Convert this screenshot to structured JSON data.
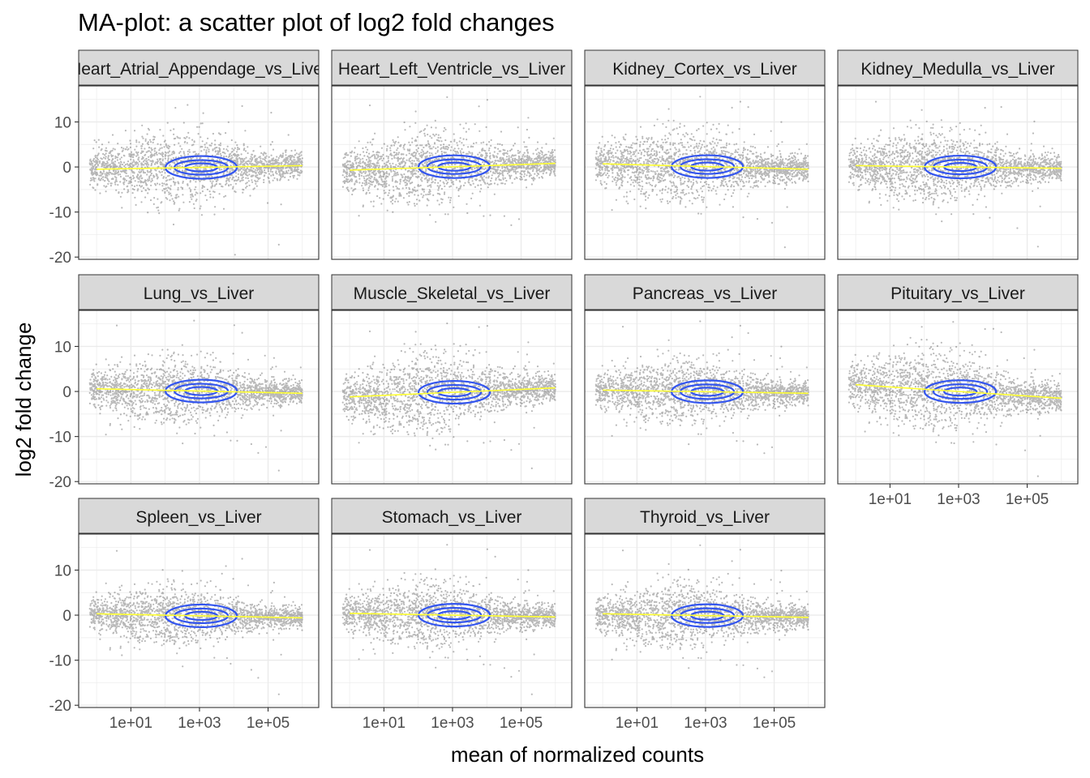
{
  "chart_data": {
    "type": "scatter",
    "title": "MA-plot: a scatter plot of log2 fold changes",
    "xlabel": "mean of normalized counts",
    "ylabel": "log2 fold change",
    "x_scale": "log10",
    "xlim": [
      0.3,
      3000000
    ],
    "ylim": [
      -20.5,
      18
    ],
    "x_ticks": [
      10,
      1000,
      100000
    ],
    "x_tick_labels": [
      "1e+01",
      "1e+03",
      "1e+05"
    ],
    "y_ticks": [
      -20,
      -10,
      0,
      10
    ],
    "y_tick_labels": [
      "-20",
      "-10",
      "0",
      "10"
    ],
    "grid": true,
    "colors": {
      "points": "#000000",
      "density_contour": "#3355ee",
      "trend_line": "#ffff33",
      "strip_background": "#d9d9d9",
      "panel_border": "#333333",
      "grid": "#ebebeb"
    },
    "panels": [
      {
        "label": "Heart_Atrial_Appendage_vs_Liver",
        "trend": [
          [
            1,
            -0.5
          ],
          [
            1000000,
            0.3
          ]
        ],
        "spread": 1.0
      },
      {
        "label": "Heart_Left_Ventricle_vs_Liver",
        "trend": [
          [
            1,
            -0.7
          ],
          [
            1000000,
            0.8
          ]
        ],
        "spread": 1.0
      },
      {
        "label": "Kidney_Cortex_vs_Liver",
        "trend": [
          [
            1,
            0.7
          ],
          [
            1000000,
            -0.5
          ]
        ],
        "spread": 1.0
      },
      {
        "label": "Kidney_Medulla_vs_Liver",
        "trend": [
          [
            1,
            0.3
          ],
          [
            1000000,
            -0.3
          ]
        ],
        "spread": 1.0
      },
      {
        "label": "Lung_vs_Liver",
        "trend": [
          [
            1,
            0.6
          ],
          [
            1000000,
            -0.4
          ]
        ],
        "spread": 0.9
      },
      {
        "label": "Muscle_Skeletal_vs_Liver",
        "trend": [
          [
            1,
            -1.2
          ],
          [
            1000000,
            0.8
          ]
        ],
        "spread": 1.1
      },
      {
        "label": "Pancreas_vs_Liver",
        "trend": [
          [
            1,
            0.3
          ],
          [
            1000000,
            -0.4
          ]
        ],
        "spread": 0.9
      },
      {
        "label": "Pituitary_vs_Liver",
        "trend": [
          [
            1,
            1.5
          ],
          [
            1000000,
            -1.5
          ]
        ],
        "spread": 1.1
      },
      {
        "label": "Spleen_vs_Liver",
        "trend": [
          [
            1,
            0.3
          ],
          [
            1000000,
            -0.6
          ]
        ],
        "spread": 0.8
      },
      {
        "label": "Stomach_vs_Liver",
        "trend": [
          [
            1,
            0.4
          ],
          [
            1000000,
            -0.4
          ]
        ],
        "spread": 0.9
      },
      {
        "label": "Thyroid_vs_Liver",
        "trend": [
          [
            1,
            0.3
          ],
          [
            1000000,
            -0.5
          ]
        ],
        "spread": 0.9
      }
    ]
  }
}
